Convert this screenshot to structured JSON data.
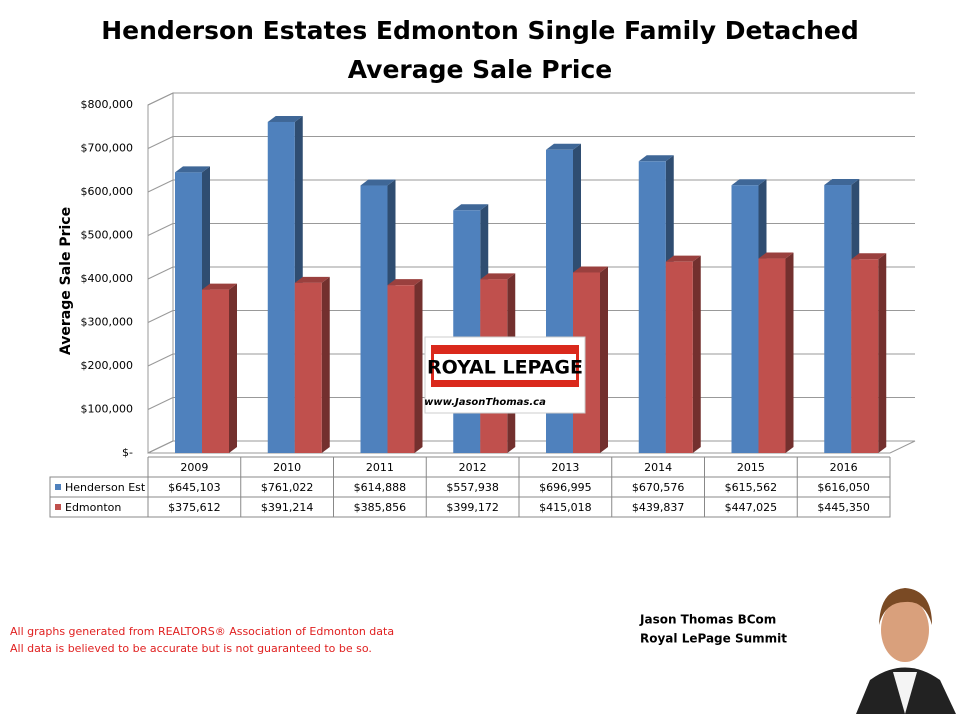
{
  "chart_data": {
    "type": "bar3d",
    "title": "Henderson Estates Edmonton Single Family Detached",
    "subtitle": "Average Sale Price",
    "y_label": "Average Sale Price",
    "categories": [
      "2009",
      "2010",
      "2011",
      "2012",
      "2013",
      "2014",
      "2015",
      "2016"
    ],
    "series": [
      {
        "name": "Henderson Est",
        "color": "#4f81bd",
        "values": [
          645103,
          761022,
          614888,
          557938,
          696995,
          670576,
          615562,
          616050
        ],
        "value_labels": [
          "$645,103",
          "$761,022",
          "$614,888",
          "$557,938",
          "$696,995",
          "$670,576",
          "$615,562",
          "$616,050"
        ]
      },
      {
        "name": "Edmonton",
        "color": "#c0504d",
        "values": [
          375612,
          391214,
          385856,
          399172,
          415018,
          439837,
          447025,
          445350
        ],
        "value_labels": [
          "$375,612",
          "$391,214",
          "$385,856",
          "$399,172",
          "$415,018",
          "$439,837",
          "$447,025",
          "$445,350"
        ]
      }
    ],
    "ylim": [
      0,
      800000
    ],
    "yticks": [
      {
        "value": 0,
        "label": "$-"
      },
      {
        "value": 100000,
        "label": "$100,000"
      },
      {
        "value": 200000,
        "label": "$200,000"
      },
      {
        "value": 300000,
        "label": "$300,000"
      },
      {
        "value": 400000,
        "label": "$400,000"
      },
      {
        "value": 500000,
        "label": "$500,000"
      },
      {
        "value": 600000,
        "label": "$600,000"
      },
      {
        "value": 700000,
        "label": "$700,000"
      },
      {
        "value": 800000,
        "label": "$800,000"
      }
    ],
    "grid": true
  },
  "logo": {
    "brand": "ROYAL LEPAGE",
    "url": "www.JasonThomas.ca"
  },
  "footer": {
    "notes": [
      "All graphs generated from REALTORS® Association of Edmonton data",
      "All data is believed to be accurate but is not guaranteed to be so."
    ]
  },
  "author": {
    "name": "Jason Thomas BCom",
    "company": "Royal LePage Summit"
  }
}
